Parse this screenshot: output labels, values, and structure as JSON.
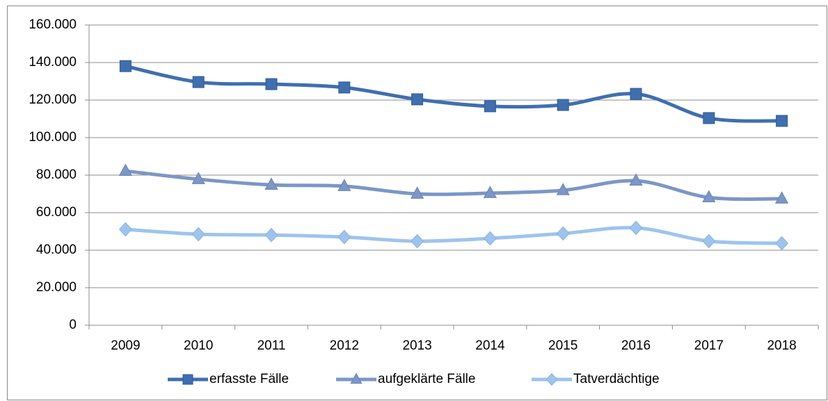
{
  "chart_data": {
    "type": "line",
    "categories": [
      "2009",
      "2010",
      "2011",
      "2012",
      "2013",
      "2014",
      "2015",
      "2016",
      "2017",
      "2018"
    ],
    "series": [
      {
        "name": "erfasste Fälle",
        "color": "#3f6fb0",
        "marker": "square",
        "values": [
          138100,
          129600,
          128500,
          126700,
          120400,
          116700,
          117400,
          123300,
          110400,
          108900
        ]
      },
      {
        "name": "aufgeklärte Fälle",
        "color": "#7b97c7",
        "marker": "triangle",
        "values": [
          82200,
          77800,
          74800,
          74100,
          70000,
          70400,
          71900,
          77000,
          68100,
          67400
        ]
      },
      {
        "name": "Tatverdächtige",
        "color": "#9ec4ee",
        "marker": "diamond",
        "values": [
          51100,
          48500,
          48100,
          47000,
          44800,
          46300,
          48900,
          51900,
          44800,
          43700
        ]
      }
    ],
    "ylim": [
      0,
      160000
    ],
    "yticks": [
      0,
      {
        "value": 20000,
        "label": "20.000"
      },
      {
        "value": 40000,
        "label": "40.000"
      },
      {
        "value": 60000,
        "label": "60.000"
      },
      {
        "value": 80000,
        "label": "80.000"
      },
      {
        "value": 100000,
        "label": "100.000"
      },
      {
        "value": 120000,
        "label": "120.000"
      },
      {
        "value": 140000,
        "label": "140.000"
      },
      {
        "value": 160000,
        "label": "160.000"
      }
    ],
    "grid": true,
    "smooth": true,
    "legend": "bottom"
  }
}
